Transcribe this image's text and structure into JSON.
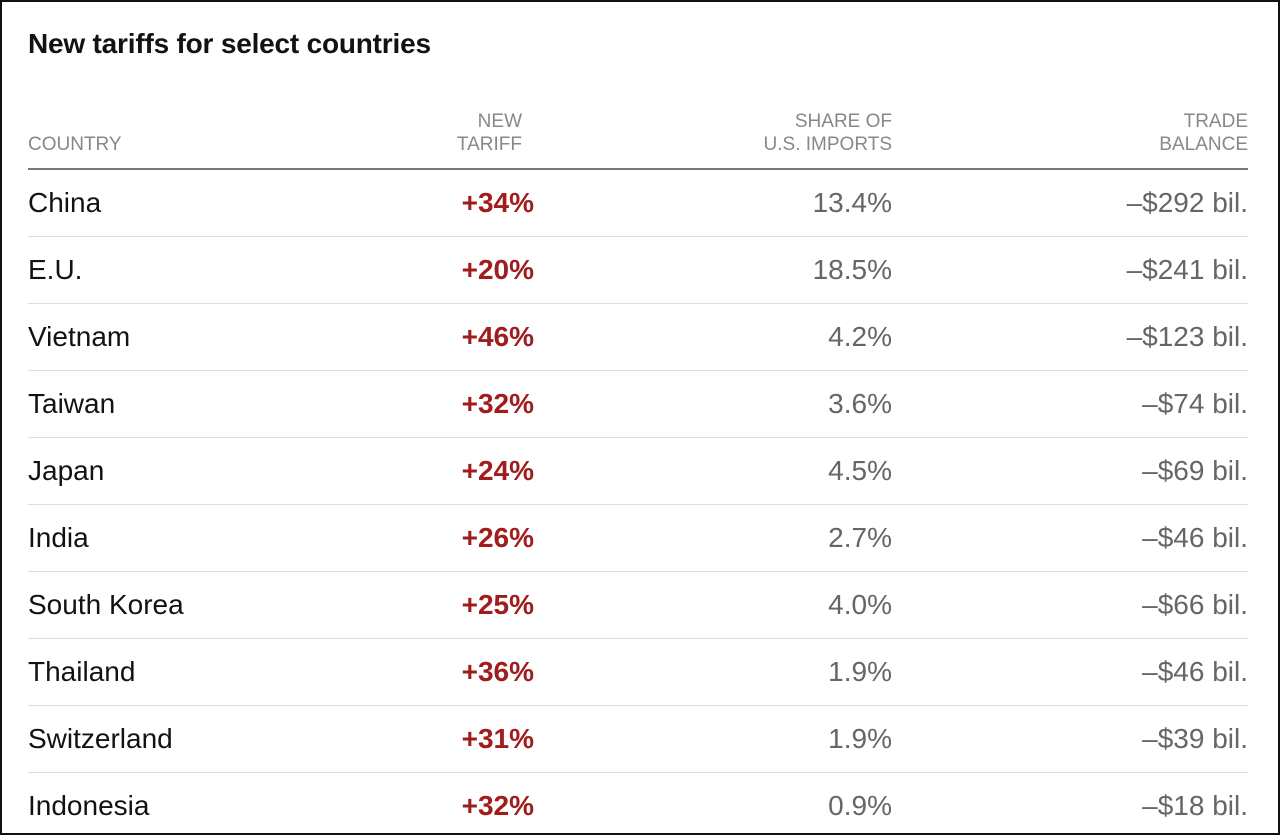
{
  "chart_data": {
    "type": "table",
    "title": "New tariffs for select countries",
    "columns": [
      [
        "COUNTRY"
      ],
      [
        "NEW",
        "TARIFF"
      ],
      [
        "SHARE OF",
        "U.S. IMPORTS"
      ],
      [
        "TRADE",
        "BALANCE"
      ]
    ],
    "rows": [
      {
        "country": "China",
        "tariff": "+34%",
        "share": "13.4%",
        "balance": "–$292 bil."
      },
      {
        "country": "E.U.",
        "tariff": "+20%",
        "share": "18.5%",
        "balance": "–$241 bil."
      },
      {
        "country": "Vietnam",
        "tariff": "+46%",
        "share": "4.2%",
        "balance": "–$123 bil."
      },
      {
        "country": "Taiwan",
        "tariff": "+32%",
        "share": "3.6%",
        "balance": "–$74 bil."
      },
      {
        "country": "Japan",
        "tariff": "+24%",
        "share": "4.5%",
        "balance": "–$69 bil."
      },
      {
        "country": "India",
        "tariff": "+26%",
        "share": "2.7%",
        "balance": "–$46 bil."
      },
      {
        "country": "South Korea",
        "tariff": "+25%",
        "share": "4.0%",
        "balance": "–$66 bil."
      },
      {
        "country": "Thailand",
        "tariff": "+36%",
        "share": "1.9%",
        "balance": "–$46 bil."
      },
      {
        "country": "Switzerland",
        "tariff": "+31%",
        "share": "1.9%",
        "balance": "–$39 bil."
      },
      {
        "country": "Indonesia",
        "tariff": "+32%",
        "share": "0.9%",
        "balance": "–$18 bil."
      }
    ],
    "colors": {
      "tariff": "#a11c1c",
      "header_text": "#888888",
      "body_text": "#121212",
      "value_text": "#666666"
    }
  }
}
